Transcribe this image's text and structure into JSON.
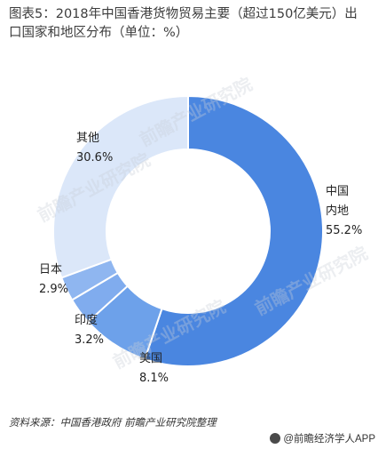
{
  "title": "图表5：2018年中国香港货物贸易主要（超过150亿美元）出口国家和地区分布（单位：%）",
  "source": "资料来源：中国香港政府 前瞻产业研究院整理",
  "brand": "@前瞻经济学人APP",
  "watermark": "前瞻产业研究院",
  "colors": {
    "mainland": "#4a86e0",
    "usa": "#6da1ea",
    "india": "#80acee",
    "japan": "#8fb6f0",
    "other": "#dbe7f9"
  },
  "chart_data": {
    "type": "pie",
    "title": "图表5：2018年中国香港货物贸易主要（超过150亿美元）出口国家和地区分布（单位：%）",
    "donut": true,
    "categories": [
      "中国内地",
      "美国",
      "印度",
      "日本",
      "其他"
    ],
    "values": [
      55.2,
      8.1,
      3.2,
      2.9,
      30.6
    ],
    "labels": [
      {
        "name_lines": [
          "中国",
          "内地"
        ],
        "value_text": "55.2%"
      },
      {
        "name_lines": [
          "美国"
        ],
        "value_text": "8.1%"
      },
      {
        "name_lines": [
          "印度"
        ],
        "value_text": "3.2%"
      },
      {
        "name_lines": [
          "日本"
        ],
        "value_text": "2.9%"
      },
      {
        "name_lines": [
          "其他"
        ],
        "value_text": "30.6%"
      }
    ]
  }
}
